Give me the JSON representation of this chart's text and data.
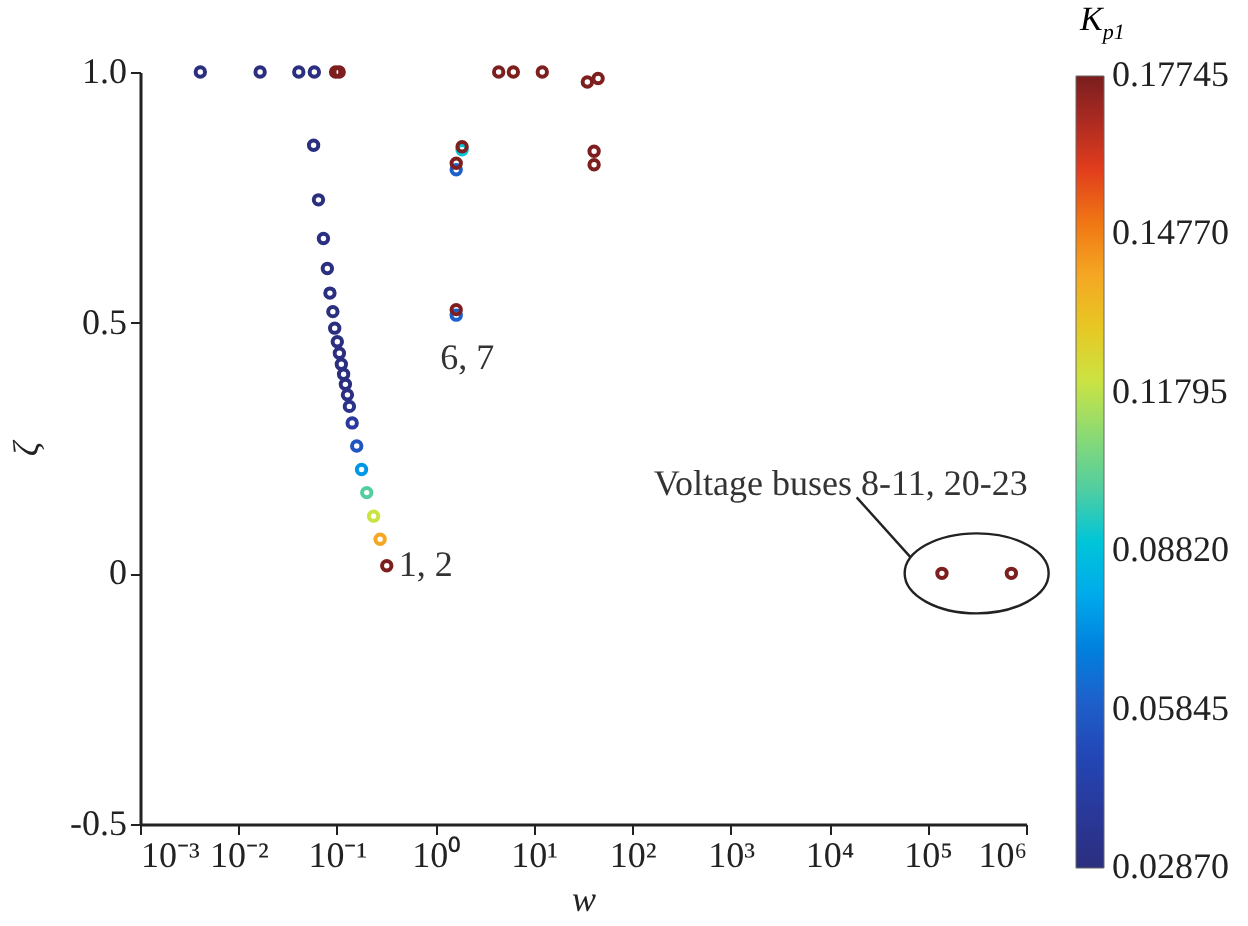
{
  "chart_data": {
    "type": "scatter",
    "xlabel": "w",
    "ylabel": "ζ",
    "clabel": "K$_{p1}$",
    "x": [
      0.0041,
      0.0166,
      0.041,
      0.059,
      0.097,
      0.1055,
      0.058,
      0.065,
      0.073,
      0.08,
      0.085,
      0.091,
      0.095,
      0.101,
      0.106,
      0.111,
      0.117,
      0.122,
      0.128,
      0.134,
      0.143,
      0.159,
      0.178,
      0.201,
      0.236,
      0.275,
      0.321,
      1.63,
      1.63,
      1.87,
      1.87,
      1.63,
      1.63,
      4.4,
      6.2,
      12.2,
      35,
      45,
      41,
      41,
      140000,
      710000
    ],
    "values": [
      1,
      1,
      1,
      1,
      1,
      1,
      0.854,
      0.745,
      0.668,
      0.608,
      0.559,
      0.522,
      0.489,
      0.462,
      0.439,
      0.417,
      0.397,
      0.377,
      0.356,
      0.333,
      0.3,
      0.254,
      0.207,
      0.161,
      0.114,
      0.068,
      0.015,
      0.805,
      0.818,
      0.845,
      0.851,
      0.515,
      0.526,
      1,
      1,
      1,
      0.98,
      0.987,
      0.842,
      0.815,
      0,
      0
    ],
    "cvalues": [
      0.0287,
      0.0287,
      0.0287,
      0.0287,
      0.177,
      0.177,
      0.0287,
      0.0287,
      0.0287,
      0.0287,
      0.0287,
      0.0287,
      0.0287,
      0.0287,
      0.0287,
      0.0287,
      0.0287,
      0.0287,
      0.03,
      0.033,
      0.04,
      0.055,
      0.075,
      0.1,
      0.12,
      0.14,
      0.177,
      0.06,
      0.177,
      0.09,
      0.177,
      0.06,
      0.177,
      0.177,
      0.177,
      0.177,
      0.177,
      0.177,
      0.177,
      0.177,
      0.177,
      0.177
    ],
    "log": "x",
    "marker": "circle",
    "grid": false,
    "xlim": [
      0.001,
      1000000
    ],
    "xticks": [
      {
        "value": 0.001,
        "label": "10⁻³"
      },
      {
        "value": 0.01,
        "label": "10⁻²"
      },
      {
        "value": 0.1,
        "label": "10⁻¹"
      },
      {
        "value": 1,
        "label": "10⁰"
      },
      {
        "value": 10,
        "label": "10¹"
      },
      {
        "value": 100,
        "label": "10²"
      },
      {
        "value": 1000,
        "label": "10³"
      },
      {
        "value": 10000,
        "label": "10⁴"
      },
      {
        "value": 100000,
        "label": "10⁵"
      },
      {
        "value": 1000000,
        "label": "10⁶"
      }
    ],
    "ylim": [
      -0.5,
      1
    ],
    "yticks": [
      -0.5,
      0,
      0.5,
      {
        "value": 1,
        "label": "1.0"
      }
    ],
    "clim": [
      0.0287,
      0.17745
    ],
    "cticks": [
      {
        "value": 0.0287,
        "label": "0.02870"
      },
      0.05845,
      {
        "value": 0.0882,
        "label": "0.08820"
      },
      0.11795,
      {
        "value": 0.1477,
        "label": "0.14770"
      },
      0.17745
    ],
    "annotations": [
      {
        "text": "1, 2",
        "x": 0.321,
        "y": 0.015
      },
      {
        "text": "6, 7",
        "x": 1.63,
        "y": 0.515
      },
      "Voltage buses 8-11, 20-23"
    ]
  }
}
